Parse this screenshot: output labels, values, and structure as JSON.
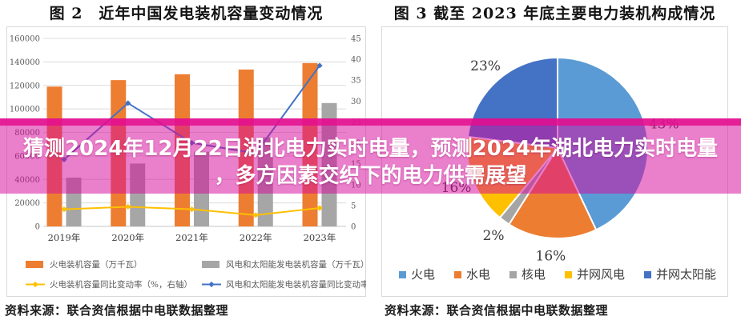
{
  "page": {
    "background": "#FFFFFF"
  },
  "banner": {
    "line1": "猜测2024年12月22日湖北电力实时电量，预测2024年湖北电力实时电量",
    "line2": "，多方因素交织下的电力供需展望",
    "overlay_color": "#D60A9E",
    "edge_color": "#E40E8E",
    "text_color": "#FFFFFF"
  },
  "chart_data": [
    {
      "type": "bar",
      "title": "图 2　近年中国发电装机容量变动情况",
      "source": "资料来源：联合资信根据中电联数据整理",
      "categories": [
        "2019年",
        "2020年",
        "2021年",
        "2022年",
        "2023年"
      ],
      "left_axis": {
        "min": 0,
        "max": 160000,
        "step": 20000
      },
      "right_axis": {
        "min": 0,
        "max": 45,
        "step": 5
      },
      "grid": true,
      "legend_position": "bottom",
      "series": [
        {
          "name": "火电装机容量（万千瓦）",
          "kind": "bar",
          "axis": "left",
          "color": "#ED7D31",
          "values": [
            119000,
            124500,
            129500,
            133500,
            139000
          ]
        },
        {
          "name": "风电和太阳能发电装机容量（万千瓦）",
          "kind": "bar",
          "axis": "left",
          "color": "#A6A6A6",
          "values": [
            41500,
            53500,
            63500,
            75800,
            105000
          ]
        },
        {
          "name": "火电装机容量同比变动率（%，右轴）",
          "kind": "line",
          "axis": "right",
          "color": "#FFC000",
          "values": [
            4.1,
            4.7,
            4.1,
            2.7,
            4.4
          ]
        },
        {
          "name": "风电和太阳能发电装机容量同比变动率（%，右轴）",
          "kind": "line",
          "axis": "right",
          "color": "#4472C4",
          "values": [
            16,
            29.5,
            20,
            17.5,
            38.5
          ]
        }
      ]
    },
    {
      "type": "pie",
      "title": "图 3 截至 2023 年底主要电力装机构成情况",
      "source": "资料来源：联合资信根据中电联数据整理",
      "start_angle_deg": 0,
      "direction": "clockwise",
      "legend_position": "bottom",
      "slices": [
        {
          "label": "火电",
          "pct": 43,
          "pct_label": "43%",
          "color": "#5B9BD5"
        },
        {
          "label": "水电",
          "pct": 16,
          "pct_label": "16%",
          "color": "#ED7D31"
        },
        {
          "label": "核电",
          "pct": 2,
          "pct_label": "2%",
          "color": "#A5A5A5"
        },
        {
          "label": "并网风电",
          "pct": 16,
          "pct_label": "16%",
          "color": "#FFC000"
        },
        {
          "label": "并网太阳能",
          "pct": 23,
          "pct_label": "23%",
          "color": "#4472C4"
        }
      ]
    }
  ]
}
